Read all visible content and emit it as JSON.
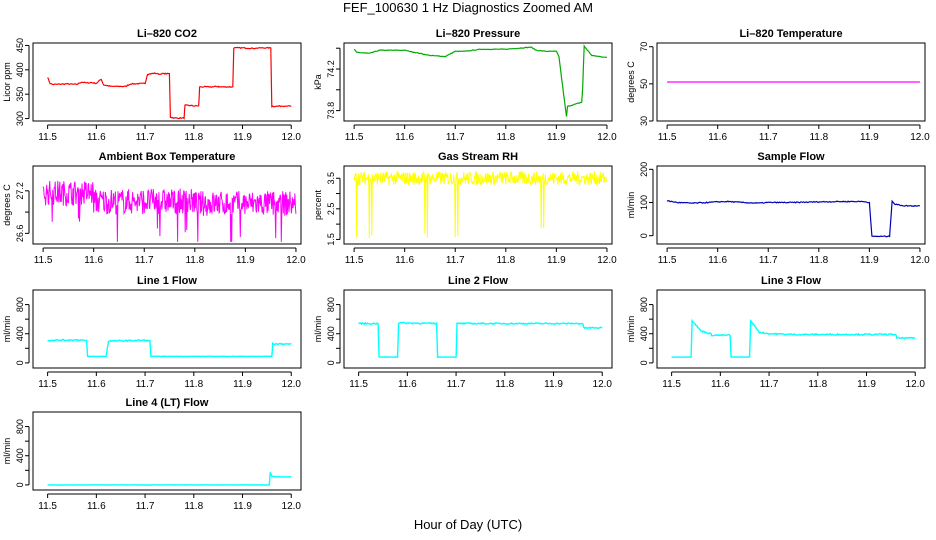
{
  "page_title": "FEF_100630 1 Hz Diagnostics Zoomed AM",
  "x_axis_label": "Hour of Day (UTC)",
  "chart_data": [
    {
      "type": "line",
      "title": "Li–820 CO2",
      "ylabel": "Licor ppm",
      "color": "#ff0000",
      "xlim": [
        11.47,
        12.02
      ],
      "ylim": [
        295,
        455
      ],
      "yticks": [
        300,
        350,
        400,
        450
      ],
      "xticks": [
        11.5,
        11.6,
        11.7,
        11.8,
        11.9,
        12.0
      ],
      "series": [
        {
          "x": [
            11.5,
            11.505,
            11.51,
            11.54,
            11.56,
            11.57,
            11.58,
            11.59,
            11.6,
            11.61,
            11.615,
            11.625,
            11.63,
            11.66,
            11.67,
            11.7,
            11.705,
            11.72,
            11.73,
            11.735,
            11.75,
            11.752,
            11.76,
            11.78,
            11.782,
            11.79,
            11.8,
            11.81,
            11.812,
            11.84,
            11.85,
            11.852,
            11.87,
            11.88,
            11.882,
            11.9,
            11.92,
            11.94,
            11.95,
            11.958,
            11.96,
            11.99,
            12.0
          ],
          "y": [
            385,
            372,
            370,
            371,
            370,
            375,
            373,
            374,
            372,
            381,
            369,
            367,
            366,
            366,
            371,
            372,
            391,
            393,
            391,
            392,
            392,
            303,
            301,
            301,
            327,
            327,
            326,
            326,
            365,
            365,
            366,
            365,
            365,
            365,
            445,
            445,
            444,
            445,
            445,
            445,
            325,
            326,
            325
          ]
        }
      ]
    },
    {
      "type": "line",
      "title": "Li–820 Pressure",
      "ylabel": "kPa",
      "color": "#00aa00",
      "xlim": [
        11.48,
        12.01
      ],
      "ylim": [
        73.7,
        74.45
      ],
      "yticks": [
        73.8,
        74.2
      ],
      "extra_yticks": [
        74.0,
        74.4
      ],
      "xticks": [
        11.5,
        11.6,
        11.7,
        11.8,
        11.9,
        12.0
      ],
      "series": [
        {
          "x": [
            11.5,
            11.505,
            11.53,
            11.55,
            11.6,
            11.62,
            11.65,
            11.68,
            11.7,
            11.72,
            11.75,
            11.8,
            11.85,
            11.86,
            11.88,
            11.9,
            11.905,
            11.92,
            11.922,
            11.95,
            11.952,
            11.955,
            11.97,
            12.0
          ],
          "y": [
            74.39,
            74.36,
            74.35,
            74.38,
            74.38,
            74.36,
            74.33,
            74.32,
            74.37,
            74.37,
            74.39,
            74.39,
            74.41,
            74.38,
            74.37,
            74.37,
            74.32,
            73.74,
            73.84,
            73.88,
            74.02,
            74.42,
            74.33,
            74.31
          ]
        }
      ]
    },
    {
      "type": "line",
      "title": "Li–820 Temperature",
      "ylabel": "degrees C",
      "color": "#ff00ff",
      "xlim": [
        11.48,
        12.01
      ],
      "ylim": [
        30,
        72
      ],
      "yticks": [
        30,
        50,
        70
      ],
      "xticks": [
        11.5,
        11.6,
        11.7,
        11.8,
        11.9,
        12.0
      ],
      "series": [
        {
          "x": [
            11.5,
            12.0
          ],
          "y": [
            51,
            51
          ]
        }
      ]
    },
    {
      "type": "line",
      "title": "Ambient Box Temperature",
      "ylabel": "degrees C",
      "color": "#ff00ff",
      "xlim": [
        11.48,
        12.01
      ],
      "ylim": [
        26.45,
        27.55
      ],
      "yticks": [
        26.6,
        27.2
      ],
      "extra_yticks": [
        26.9
      ],
      "xticks": [
        11.5,
        11.6,
        11.7,
        11.8,
        11.9,
        12.0
      ],
      "series": [
        {
          "x": [
            11.5,
            11.52,
            11.54,
            11.57,
            11.6,
            11.63,
            11.65,
            11.7,
            11.75,
            11.8,
            11.85,
            11.9,
            11.95,
            11.98,
            12.0
          ],
          "y": [
            27.15,
            27.2,
            27.1,
            27.05,
            27.1,
            27.05,
            27.1,
            27.05,
            27.05,
            27.0,
            27.05,
            27.05,
            27.0,
            27.05,
            27.0
          ]
        }
      ]
    },
    {
      "type": "line",
      "title": "Gas Stream RH",
      "ylabel": "percent",
      "color": "#ffff00",
      "xlim": [
        11.48,
        12.01
      ],
      "ylim": [
        1.35,
        3.9
      ],
      "yticks": [
        1.5,
        2.5,
        3.5
      ],
      "extra_yticks": [
        2.0,
        3.0
      ],
      "xticks": [
        11.5,
        11.6,
        11.7,
        11.8,
        11.9,
        12.0
      ],
      "series": [
        {
          "x": [
            11.5,
            11.55,
            11.6,
            11.65,
            11.7,
            11.75,
            11.8,
            11.85,
            11.9,
            11.95,
            12.0
          ],
          "y": [
            3.5,
            3.5,
            3.5,
            3.5,
            3.5,
            3.5,
            3.5,
            3.5,
            3.5,
            3.5,
            3.5
          ]
        }
      ]
    },
    {
      "type": "line",
      "title": "Sample Flow",
      "ylabel": "ml/min",
      "color": "#0000bb",
      "xlim": [
        11.48,
        12.01
      ],
      "ylim": [
        -25,
        210
      ],
      "yticks": [
        0,
        100,
        200
      ],
      "xticks": [
        11.5,
        11.6,
        11.7,
        11.8,
        11.9,
        12.0
      ],
      "series": [
        {
          "x": [
            11.5,
            11.52,
            11.55,
            11.58,
            11.6,
            11.62,
            11.65,
            11.68,
            11.7,
            11.75,
            11.8,
            11.85,
            11.89,
            11.9,
            11.905,
            11.94,
            11.945,
            11.95,
            11.97,
            12.0
          ],
          "y": [
            105,
            100,
            98,
            100,
            102,
            103,
            100,
            98,
            100,
            100,
            102,
            103,
            103,
            100,
            -2,
            -2,
            105,
            95,
            90,
            90
          ]
        }
      ]
    },
    {
      "type": "line",
      "title": "Line 1 Flow",
      "ylabel": "ml/min",
      "color": "#00ffff",
      "xlim": [
        11.47,
        12.02
      ],
      "ylim": [
        -70,
        1000
      ],
      "yticks": [
        0,
        400,
        800
      ],
      "extra_yticks": [
        200,
        600
      ],
      "xticks": [
        11.5,
        11.6,
        11.7,
        11.8,
        11.9,
        12.0
      ],
      "series": [
        {
          "x": [
            11.5,
            11.57,
            11.58,
            11.582,
            11.62,
            11.625,
            11.7,
            11.71,
            11.712,
            11.95,
            11.96,
            11.962,
            12.0
          ],
          "y": [
            310,
            315,
            300,
            90,
            90,
            300,
            310,
            300,
            90,
            90,
            90,
            260,
            260
          ]
        }
      ]
    },
    {
      "type": "line",
      "title": "Line 2 Flow",
      "ylabel": "ml/min",
      "color": "#00ffff",
      "xlim": [
        11.47,
        12.02
      ],
      "ylim": [
        -70,
        1000
      ],
      "yticks": [
        0,
        400,
        800
      ],
      "extra_yticks": [
        200,
        600
      ],
      "xticks": [
        11.5,
        11.6,
        11.7,
        11.8,
        11.9,
        12.0
      ],
      "series": [
        {
          "x": [
            11.5,
            11.54,
            11.542,
            11.58,
            11.582,
            11.66,
            11.662,
            11.7,
            11.702,
            11.95,
            11.96,
            11.962,
            12.0
          ],
          "y": [
            540,
            540,
            80,
            80,
            550,
            540,
            80,
            80,
            540,
            540,
            540,
            480,
            480
          ]
        }
      ]
    },
    {
      "type": "line",
      "title": "Line 3 Flow",
      "ylabel": "ml/min",
      "color": "#00ffff",
      "xlim": [
        11.47,
        12.02
      ],
      "ylim": [
        -70,
        1000
      ],
      "yticks": [
        0,
        400,
        800
      ],
      "extra_yticks": [
        200,
        600
      ],
      "xticks": [
        11.5,
        11.6,
        11.7,
        11.8,
        11.9,
        12.0
      ],
      "series": [
        {
          "x": [
            11.5,
            11.54,
            11.542,
            11.56,
            11.58,
            11.582,
            11.62,
            11.622,
            11.66,
            11.662,
            11.68,
            11.7,
            11.75,
            11.8,
            11.85,
            11.9,
            11.95,
            11.96,
            11.962,
            12.0
          ],
          "y": [
            80,
            80,
            580,
            440,
            400,
            380,
            380,
            80,
            80,
            580,
            420,
            400,
            390,
            390,
            390,
            390,
            390,
            390,
            340,
            340
          ]
        }
      ]
    },
    {
      "type": "line",
      "title": "Line 4 (LT) Flow",
      "ylabel": "ml/min",
      "color": "#00ffff",
      "xlim": [
        11.47,
        12.02
      ],
      "ylim": [
        -70,
        1000
      ],
      "yticks": [
        0,
        400,
        800
      ],
      "extra_yticks": [
        200,
        600
      ],
      "xticks": [
        11.5,
        11.6,
        11.7,
        11.8,
        11.9,
        12.0
      ],
      "series": [
        {
          "x": [
            11.5,
            11.6,
            11.7,
            11.8,
            11.9,
            11.955,
            11.957,
            11.96,
            11.97,
            12.0
          ],
          "y": [
            0,
            0,
            0,
            0,
            0,
            0,
            180,
            120,
            110,
            110
          ]
        }
      ]
    }
  ],
  "colors": {
    "axis": "#000000",
    "frame": "#000000"
  }
}
